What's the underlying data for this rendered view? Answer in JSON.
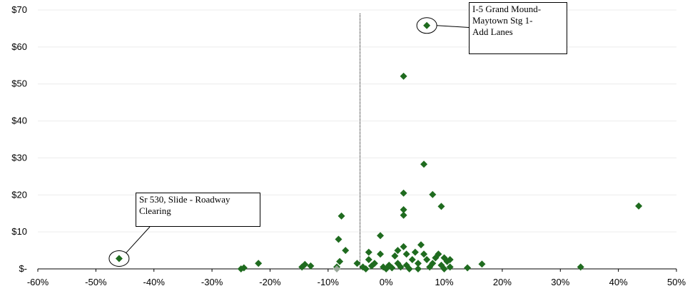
{
  "chart_data": {
    "type": "scatter",
    "title": "",
    "xlabel": "",
    "ylabel": "",
    "xlim": [
      -0.6,
      0.5
    ],
    "ylim": [
      0,
      70
    ],
    "x_ticks": [
      -0.6,
      -0.5,
      -0.4,
      -0.3,
      -0.2,
      -0.1,
      0,
      0.1,
      0.2,
      0.3,
      0.4,
      0.5
    ],
    "x_tick_labels": [
      "-60%",
      "-50%",
      "-40%",
      "-30%",
      "-20%",
      "-10%",
      "0%",
      "10%",
      "20%",
      "30%",
      "40%",
      "50%"
    ],
    "y_ticks": [
      0,
      10,
      20,
      30,
      40,
      50,
      60,
      70
    ],
    "y_tick_labels": [
      "$-",
      "$10",
      "$20",
      "$30",
      "$40",
      "$50",
      "$60",
      "$70"
    ],
    "grid": "horizontal",
    "reference_line_x": -0.045,
    "marker_color": "#1f6b1f",
    "highlight_marker_color": "#9aa89a",
    "series": [
      {
        "marker": "diamond",
        "points": [
          [
            -0.46,
            2.8
          ],
          [
            0.07,
            65.8
          ],
          [
            0.03,
            52.1
          ],
          [
            0.065,
            28.3
          ],
          [
            0.03,
            20.5
          ],
          [
            0.08,
            20.1
          ],
          [
            0.095,
            16.9
          ],
          [
            0.03,
            16.0
          ],
          [
            0.03,
            14.5
          ],
          [
            0.435,
            17.0
          ],
          [
            0.335,
            0.5
          ],
          [
            0.165,
            1.3
          ],
          [
            0.14,
            0.3
          ],
          [
            -0.077,
            14.3
          ],
          [
            -0.082,
            8.0
          ],
          [
            -0.07,
            5.0
          ],
          [
            -0.08,
            2.0
          ],
          [
            -0.085,
            0.5
          ],
          [
            -0.25,
            0.0
          ],
          [
            -0.245,
            0.3
          ],
          [
            -0.22,
            1.5
          ],
          [
            -0.145,
            0.5
          ],
          [
            -0.14,
            1.2
          ],
          [
            -0.13,
            0.8
          ],
          [
            -0.05,
            1.5
          ],
          [
            -0.04,
            0.5
          ],
          [
            -0.035,
            0.0
          ],
          [
            -0.025,
            0.8
          ],
          [
            -0.03,
            4.5
          ],
          [
            -0.03,
            2.5
          ],
          [
            -0.02,
            1.5
          ],
          [
            -0.01,
            9.0
          ],
          [
            -0.01,
            4.0
          ],
          [
            -0.005,
            0.5
          ],
          [
            0.0,
            0.0
          ],
          [
            0.005,
            1.0
          ],
          [
            0.01,
            0.3
          ],
          [
            0.015,
            3.5
          ],
          [
            0.02,
            5.0
          ],
          [
            0.02,
            1.5
          ],
          [
            0.025,
            0.5
          ],
          [
            0.03,
            6.0
          ],
          [
            0.035,
            4.0
          ],
          [
            0.035,
            1.0
          ],
          [
            0.04,
            0.0
          ],
          [
            0.045,
            2.5
          ],
          [
            0.05,
            4.5
          ],
          [
            0.055,
            1.5
          ],
          [
            0.055,
            0.0
          ],
          [
            0.06,
            6.5
          ],
          [
            0.065,
            4.0
          ],
          [
            0.07,
            2.5
          ],
          [
            0.075,
            0.5
          ],
          [
            0.08,
            1.5
          ],
          [
            0.085,
            3.0
          ],
          [
            0.09,
            4.0
          ],
          [
            0.095,
            1.0
          ],
          [
            0.1,
            3.0
          ],
          [
            0.1,
            0.0
          ],
          [
            0.105,
            2.0
          ],
          [
            0.11,
            0.5
          ],
          [
            0.11,
            2.5
          ]
        ]
      }
    ],
    "highlight_points": [
      [
        -0.085,
        0.0
      ]
    ],
    "annotations": [
      {
        "lines": [
          "Sr 530, Slide - Roadway",
          "Clearing"
        ],
        "point": [
          -0.46,
          2.8
        ]
      },
      {
        "lines": [
          "I-5 Grand Mound-",
          "Maytown Stg 1-",
          "Add Lanes"
        ],
        "point": [
          0.07,
          65.8
        ]
      }
    ]
  }
}
